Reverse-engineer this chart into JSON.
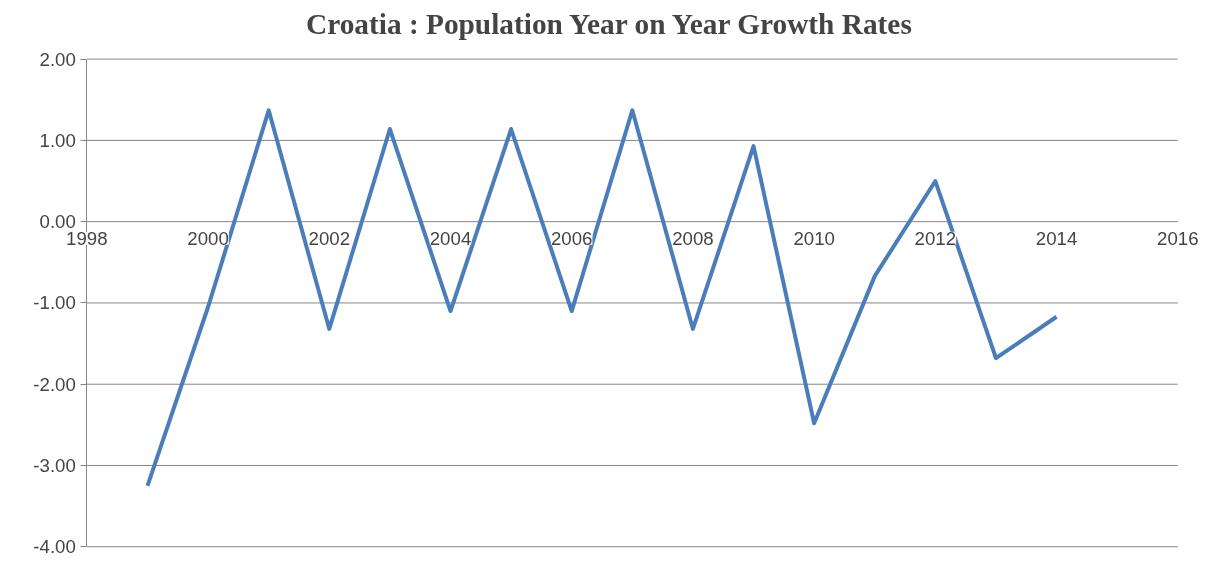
{
  "chart_data": {
    "type": "line",
    "title": "Croatia : Population Year on Year Growth Rates",
    "x": [
      1999,
      2000,
      2001,
      2002,
      2003,
      2004,
      2005,
      2006,
      2007,
      2008,
      2009,
      2010,
      2011,
      2012,
      2013,
      2014
    ],
    "series": [
      {
        "color": "#4a7ebb",
        "values": [
          -3.25,
          -1.05,
          1.37,
          -1.32,
          1.14,
          -1.1,
          1.14,
          -1.1,
          1.37,
          -1.32,
          0.93,
          -2.48,
          -0.67,
          0.5,
          -1.68,
          -1.17
        ]
      }
    ],
    "xlim": [
      1998,
      2016
    ],
    "xticks": [
      1998,
      2000,
      2002,
      2004,
      2006,
      2008,
      2010,
      2012,
      2014,
      2016
    ],
    "ylim": [
      -4,
      2
    ],
    "yticks": [
      {
        "value": -4,
        "label": "-4.00"
      },
      {
        "value": -3,
        "label": "-3.00"
      },
      {
        "value": -2,
        "label": "-2.00"
      },
      {
        "value": -1,
        "label": "-1.00"
      },
      {
        "value": 0,
        "label": "0.00"
      },
      {
        "value": 1,
        "label": "1.00"
      },
      {
        "value": 2,
        "label": "2.00"
      }
    ],
    "grid": "y",
    "marker": "none",
    "line_style": "solid"
  }
}
